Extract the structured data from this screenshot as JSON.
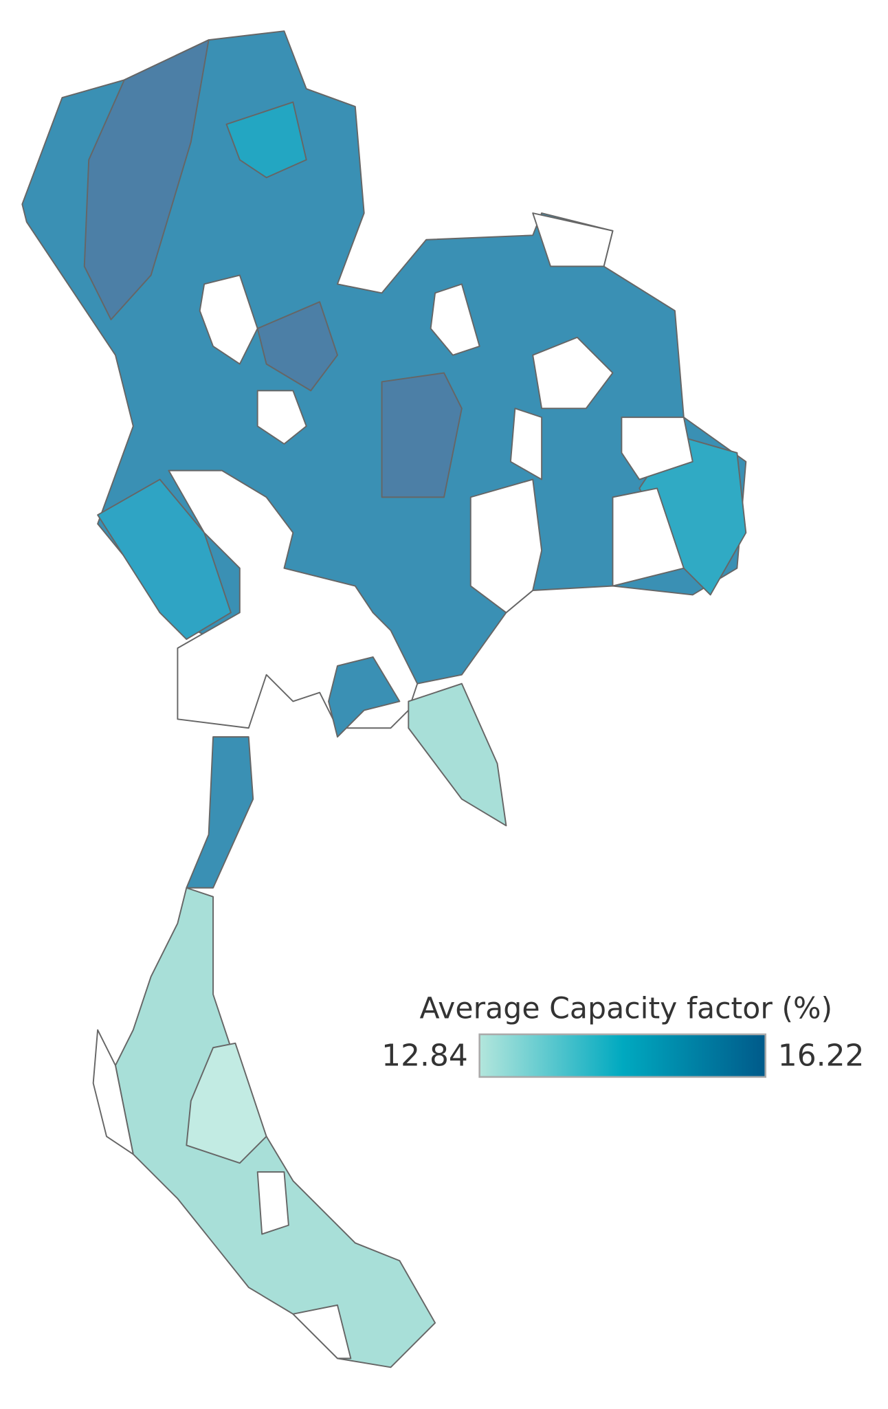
{
  "legend": {
    "title": "Average Capacity factor (%)",
    "min": 12.84,
    "max": 16.22,
    "colors": [
      "#b3e6dc",
      "#00a9c0",
      "#005a8a"
    ]
  }
}
